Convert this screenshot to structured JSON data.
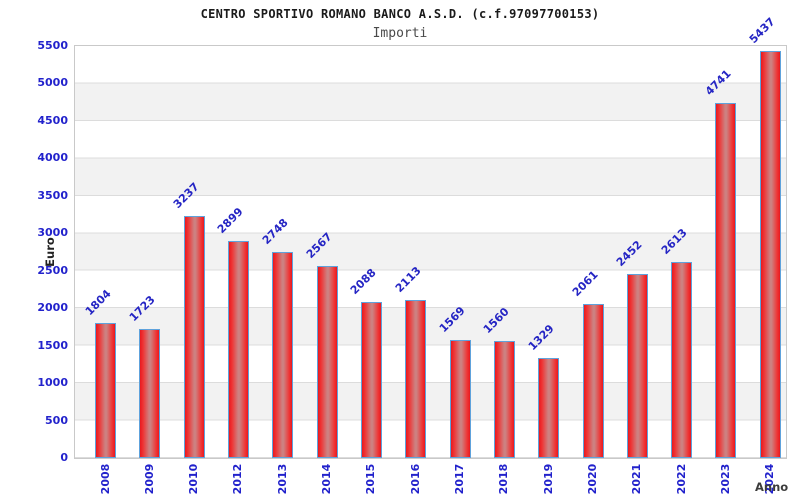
{
  "chart_data": {
    "type": "bar",
    "title": "CENTRO SPORTIVO ROMANO BANCO A.S.D. (c.f.97097700153)",
    "subtitle": "Importi",
    "xlabel": "Anno",
    "ylabel": "Euro",
    "categories": [
      "2008",
      "2009",
      "2010",
      "2012",
      "2013",
      "2014",
      "2015",
      "2016",
      "2017",
      "2018",
      "2019",
      "2020",
      "2021",
      "2022",
      "2023",
      "2024"
    ],
    "values": [
      1804,
      1723,
      3237,
      2899,
      2748,
      2567,
      2088,
      2113,
      1569,
      1560,
      1329,
      2061,
      2452,
      2613,
      4741,
      5437
    ],
    "ylim": [
      0,
      5500
    ],
    "ytick_step": 500,
    "ytick_labels": [
      "5500",
      "5000",
      "4500",
      "4000",
      "3500",
      "3000",
      "2500",
      "2000",
      "1500",
      "1000",
      "500",
      "0"
    ],
    "grid": "horizontal-bands",
    "legend": "none",
    "colors": {
      "bar_fill_edge": "#e8191f",
      "bar_fill_mid": "#cd8181",
      "bar_border": "#5ea2dc",
      "axis_label_text": "#2222cc",
      "value_label_text": "#2525c4",
      "band_gray": "#f2f2f2",
      "gridline": "#dcdcdc",
      "plot_border": "#c9c9c9",
      "title_text": "#1a1a1a",
      "subtitle_text": "#4a4a4a",
      "axis_title_text": "#3c3c3c"
    }
  }
}
